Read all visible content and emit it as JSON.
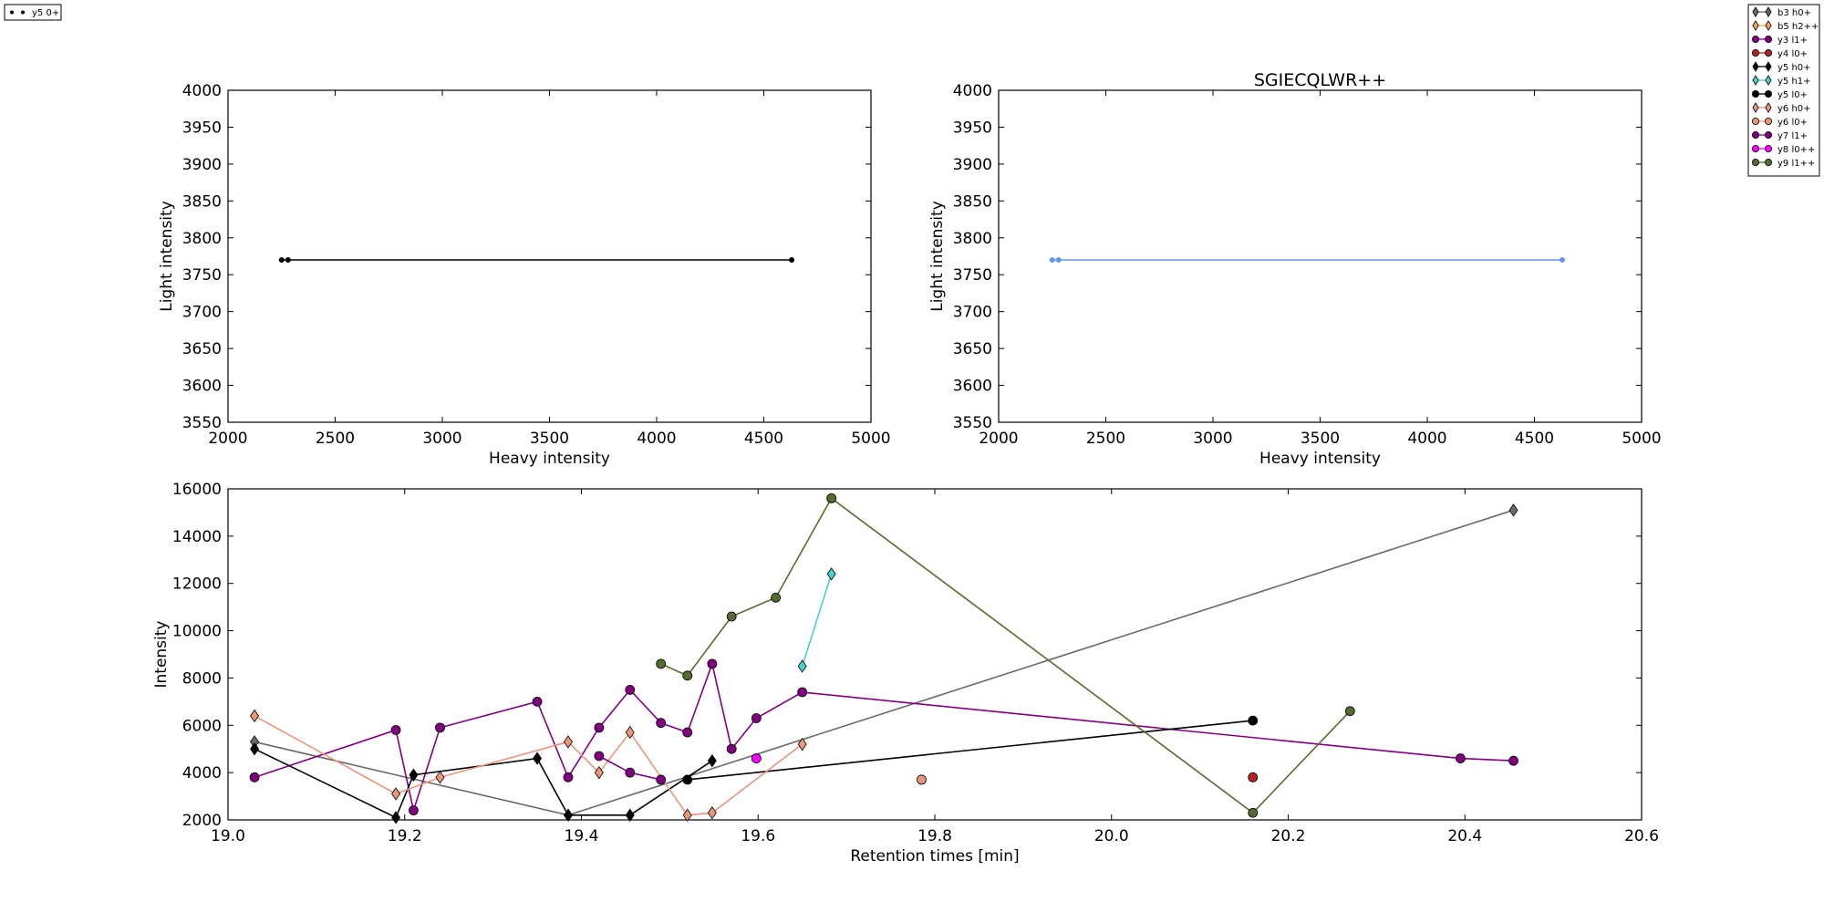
{
  "chart_data": [
    {
      "type": "line",
      "title": "",
      "xlabel": "Heavy intensity",
      "ylabel": "Light intensity",
      "xlim": [
        2000,
        5000
      ],
      "ylim": [
        3550,
        4000
      ],
      "xticks": [
        "2000",
        "2500",
        "3000",
        "3500",
        "4000",
        "4500",
        "5000"
      ],
      "yticks": [
        "3550",
        "3600",
        "3650",
        "3700",
        "3750",
        "3800",
        "3850",
        "3900",
        "3950",
        "4000"
      ],
      "legend": {
        "placement": "top-left-outside",
        "entries": [
          "y5 0+"
        ]
      },
      "series": [
        {
          "name": "y5 0+",
          "color": "#000000",
          "x": [
            2250,
            2280,
            4630
          ],
          "y": [
            3770,
            3770,
            3770
          ]
        }
      ]
    },
    {
      "type": "line",
      "title": "SGIECQLWR++",
      "xlabel": "Heavy intensity",
      "ylabel": "Light intensity",
      "xlim": [
        2000,
        5000
      ],
      "ylim": [
        3550,
        4000
      ],
      "xticks": [
        "2000",
        "2500",
        "3000",
        "3500",
        "4000",
        "4500",
        "5000"
      ],
      "yticks": [
        "3550",
        "3600",
        "3650",
        "3700",
        "3750",
        "3800",
        "3850",
        "3900",
        "3950",
        "4000"
      ],
      "series": [
        {
          "color": "#6495ed",
          "x": [
            2250,
            2280,
            4630
          ],
          "y": [
            3770,
            3770,
            3770
          ]
        }
      ]
    },
    {
      "type": "line",
      "title": "",
      "xlabel": "Retention times [min]",
      "ylabel": "Intensity",
      "xlim": [
        19.0,
        20.6
      ],
      "ylim": [
        2000,
        16000
      ],
      "xticks": [
        "19.0",
        "19.2",
        "19.4",
        "19.6",
        "19.8",
        "20.0",
        "20.2",
        "20.4",
        "20.6"
      ],
      "yticks": [
        "2000",
        "4000",
        "6000",
        "8000",
        "10000",
        "12000",
        "14000",
        "16000"
      ],
      "legend": {
        "placement": "top-right-outside"
      },
      "series": [
        {
          "name": "b3 h0+",
          "color": "#696969",
          "marker": "diamond",
          "x": [
            19.03,
            19.385,
            20.455
          ],
          "y": [
            5300,
            2200,
            15100
          ]
        },
        {
          "name": "b5 h2++",
          "color": "#f4a460",
          "marker": "diamond",
          "x": [],
          "y": []
        },
        {
          "name": "y3 l1+",
          "color": "#800080",
          "marker": "circle",
          "x": [
            19.03,
            19.19,
            19.21,
            19.24,
            19.35,
            19.385,
            19.42,
            19.455,
            19.49,
            19.52,
            19.548,
            19.57,
            19.598,
            19.65,
            20.395,
            20.455
          ],
          "y": [
            3800,
            5800,
            2400,
            5900,
            7000,
            3800,
            5900,
            7500,
            6100,
            5700,
            8600,
            5000,
            6300,
            7400,
            4600,
            4500
          ]
        },
        {
          "name": "y4 l0+",
          "color": "#b22222",
          "marker": "circle",
          "x": [
            20.16
          ],
          "y": [
            3800
          ]
        },
        {
          "name": "y5 h0+",
          "color": "#000000",
          "marker": "diamond",
          "x": [
            19.03,
            19.19,
            19.21,
            19.35,
            19.385,
            19.455,
            19.548
          ],
          "y": [
            5000,
            2100,
            3900,
            4600,
            2200,
            2200,
            4500
          ]
        },
        {
          "name": "y5 h1+",
          "color": "#48d1cc",
          "marker": "diamond",
          "x": [
            19.65,
            19.683
          ],
          "y": [
            8500,
            12400
          ]
        },
        {
          "name": "y5 l0+",
          "color": "#000000",
          "marker": "circle",
          "x": [
            19.52,
            20.16
          ],
          "y": [
            3700,
            6200
          ]
        },
        {
          "name": "y6 h0+",
          "color": "#e9967a",
          "marker": "diamond",
          "x": [
            19.03,
            19.19,
            19.24,
            19.385,
            19.42,
            19.455,
            19.52,
            19.548,
            19.65
          ],
          "y": [
            6400,
            3100,
            3800,
            5300,
            4000,
            5700,
            2200,
            2300,
            5200
          ]
        },
        {
          "name": "y6 l0+",
          "color": "#e9967a",
          "marker": "circle",
          "x": [
            19.785
          ],
          "y": [
            3700
          ]
        },
        {
          "name": "y7 l1+",
          "color": "#800080",
          "marker": "circle",
          "x": [
            19.42,
            19.455,
            19.49
          ],
          "y": [
            4700,
            4000,
            3700
          ]
        },
        {
          "name": "y8 l0++",
          "color": "#ff00ff",
          "marker": "circle",
          "x": [
            19.598
          ],
          "y": [
            4600
          ]
        },
        {
          "name": "y9 l1++",
          "color": "#556b2f",
          "marker": "circle",
          "x": [
            19.49,
            19.52,
            19.57,
            19.62,
            19.683,
            20.16,
            20.27
          ],
          "y": [
            8600,
            8100,
            10600,
            11400,
            15600,
            2300,
            6600
          ]
        }
      ]
    }
  ]
}
